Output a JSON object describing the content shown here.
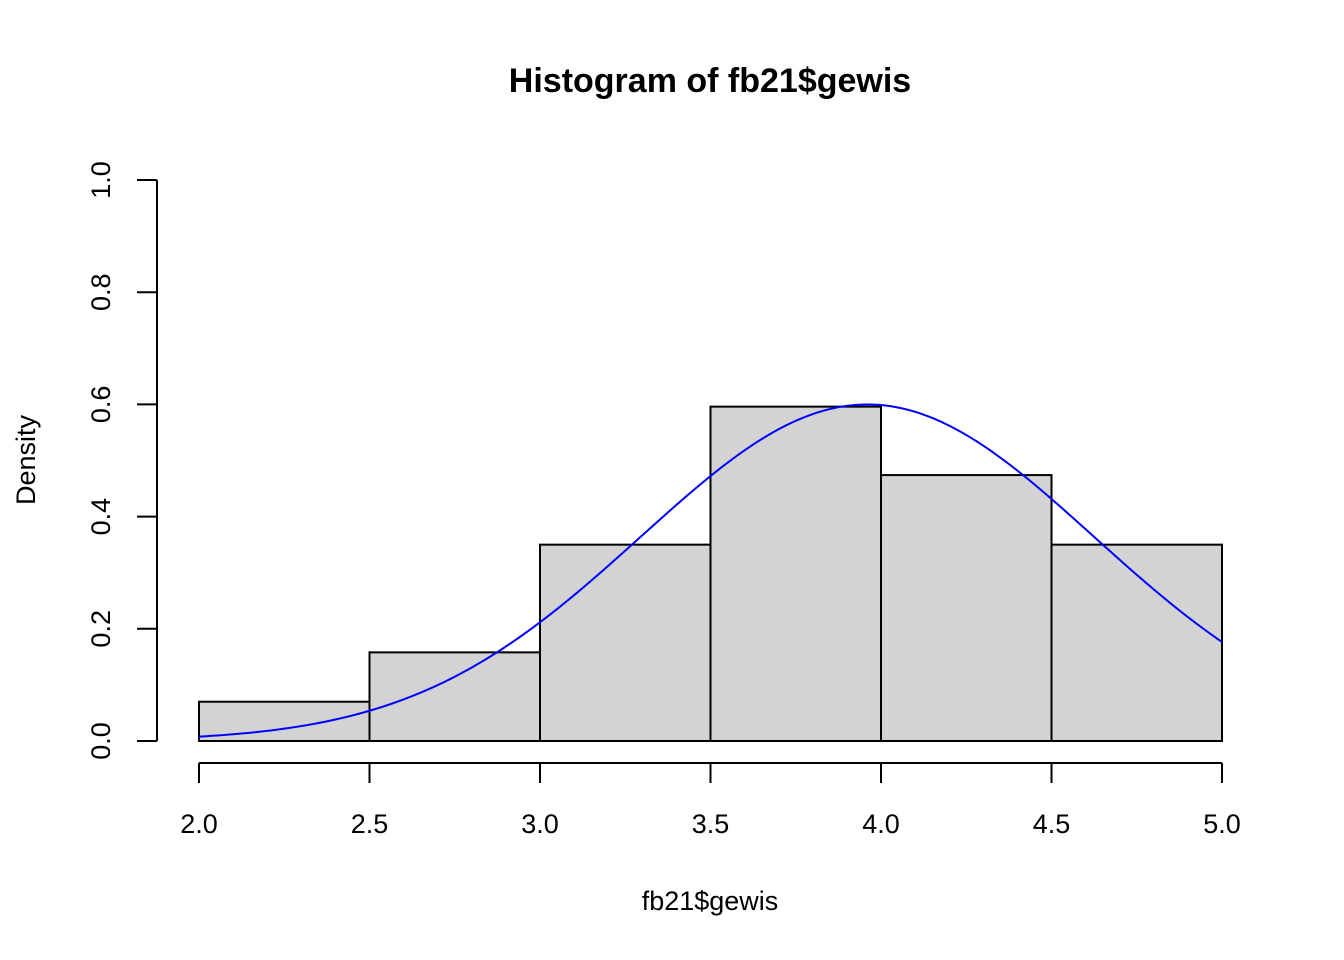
{
  "chart_data": {
    "type": "bar",
    "title": "Histogram of fb21$gewis",
    "xlabel": "fb21$gewis",
    "ylabel": "Density",
    "bins": [
      {
        "start": 2.0,
        "end": 2.5,
        "density": 0.07
      },
      {
        "start": 2.5,
        "end": 3.0,
        "density": 0.158
      },
      {
        "start": 3.0,
        "end": 3.5,
        "density": 0.35
      },
      {
        "start": 3.5,
        "end": 4.0,
        "density": 0.596
      },
      {
        "start": 4.0,
        "end": 4.5,
        "density": 0.474
      },
      {
        "start": 4.5,
        "end": 5.0,
        "density": 0.35
      }
    ],
    "curve": {
      "type": "normal",
      "mean": 3.96,
      "sd": 0.665
    },
    "xlim": [
      2.0,
      5.0
    ],
    "ylim": [
      0.0,
      1.0
    ],
    "x_ticks": [
      "2.0",
      "2.5",
      "3.0",
      "3.5",
      "4.0",
      "4.5",
      "5.0"
    ],
    "y_ticks": [
      "0.0",
      "0.2",
      "0.4",
      "0.6",
      "0.8",
      "1.0"
    ],
    "grid": false,
    "bar_color": "#d3d3d3",
    "curve_color": "#0000ff"
  }
}
